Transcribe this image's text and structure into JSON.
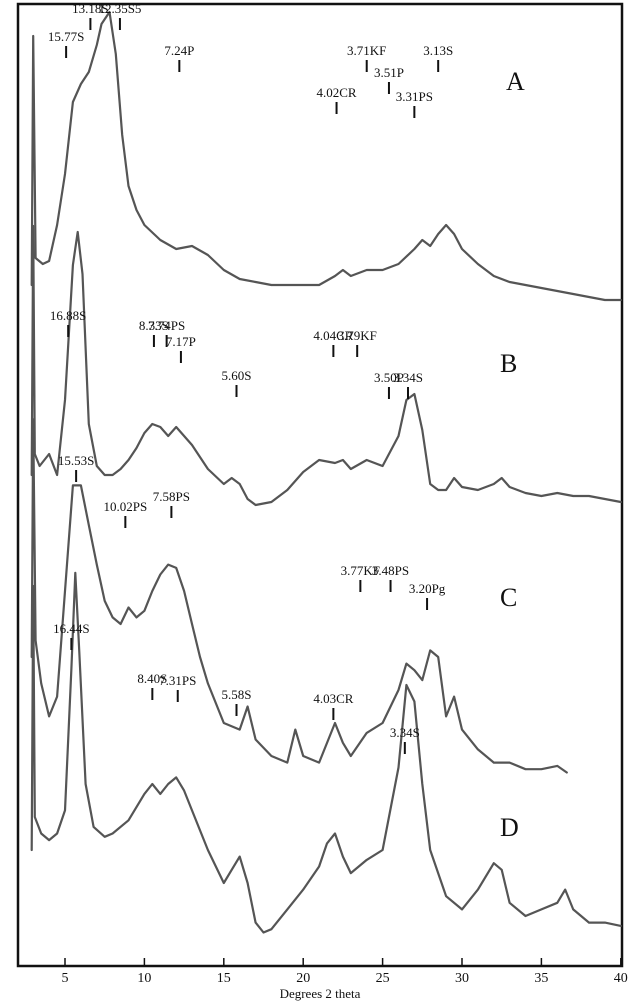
{
  "chart_data": {
    "type": "line",
    "xlabel": "Degrees 2 theta",
    "ylabel": "",
    "xlim": [
      2.5,
      40
    ],
    "xticks": [
      5,
      10,
      15,
      20,
      25,
      30,
      35,
      40
    ],
    "grid": false,
    "series": [
      {
        "name": "A",
        "x": [
          2.9,
          3.0,
          3.15,
          3.6,
          4.0,
          4.5,
          5.0,
          5.5,
          6.0,
          6.5,
          7.0,
          7.3,
          7.8,
          8.2,
          8.6,
          9.0,
          9.5,
          10.0,
          11.0,
          12.0,
          13.0,
          14.0,
          15.0,
          16.0,
          17.0,
          18.0,
          19.0,
          20.0,
          21.0,
          22.0,
          22.5,
          23.0,
          24.0,
          25.0,
          26.0,
          27.0,
          27.5,
          28.0,
          28.5,
          29.0,
          29.5,
          30.0,
          31.0,
          32.0,
          33.0,
          34.0,
          35.0,
          36.0,
          37.0,
          38.0,
          39.0,
          40.0
        ],
        "y": [
          0.05,
          0.88,
          0.14,
          0.12,
          0.13,
          0.25,
          0.42,
          0.66,
          0.72,
          0.76,
          0.85,
          0.92,
          0.96,
          0.82,
          0.55,
          0.38,
          0.3,
          0.25,
          0.2,
          0.17,
          0.18,
          0.15,
          0.1,
          0.07,
          0.06,
          0.05,
          0.05,
          0.05,
          0.05,
          0.08,
          0.1,
          0.08,
          0.1,
          0.1,
          0.12,
          0.17,
          0.2,
          0.18,
          0.22,
          0.25,
          0.22,
          0.17,
          0.12,
          0.08,
          0.06,
          0.05,
          0.04,
          0.03,
          0.02,
          0.01,
          0.0,
          0.0
        ]
      },
      {
        "name": "B",
        "x": [
          2.9,
          3.0,
          3.1,
          3.4,
          4.0,
          4.5,
          5.0,
          5.5,
          5.8,
          6.1,
          6.5,
          7.0,
          7.5,
          8.0,
          8.5,
          9.0,
          9.5,
          10.0,
          10.5,
          11.0,
          11.5,
          12.0,
          12.5,
          13.0,
          14.0,
          15.0,
          15.5,
          16.0,
          16.5,
          17.0,
          18.0,
          19.0,
          20.0,
          21.0,
          22.0,
          22.5,
          23.0,
          24.0,
          25.0,
          26.0,
          26.5,
          27.0,
          27.5,
          28.0,
          28.5,
          29.0,
          29.5,
          30.0,
          31.0,
          32.0,
          32.5,
          33.0,
          34.0,
          35.0,
          36.0,
          37.0,
          38.0,
          39.0,
          40.0
        ],
        "y": [
          0.05,
          0.88,
          0.12,
          0.08,
          0.12,
          0.05,
          0.3,
          0.75,
          0.86,
          0.72,
          0.22,
          0.08,
          0.05,
          0.05,
          0.07,
          0.1,
          0.14,
          0.19,
          0.22,
          0.21,
          0.18,
          0.21,
          0.18,
          0.15,
          0.07,
          0.02,
          0.04,
          0.02,
          -0.03,
          -0.05,
          -0.04,
          0.0,
          0.06,
          0.1,
          0.09,
          0.1,
          0.07,
          0.1,
          0.08,
          0.18,
          0.3,
          0.32,
          0.2,
          0.02,
          0.0,
          0.0,
          0.04,
          0.01,
          0.0,
          0.02,
          0.04,
          0.01,
          -0.01,
          -0.02,
          -0.01,
          -0.02,
          -0.02,
          -0.03,
          -0.04
        ]
      },
      {
        "name": "C",
        "x": [
          2.9,
          3.0,
          3.15,
          3.5,
          4.0,
          4.5,
          5.0,
          5.5,
          6.0,
          6.5,
          7.0,
          7.5,
          8.0,
          8.5,
          9.0,
          9.5,
          10.0,
          10.5,
          11.0,
          11.5,
          12.0,
          12.5,
          13.0,
          13.5,
          14.0,
          15.0,
          16.0,
          16.5,
          17.0,
          18.0,
          19.0,
          19.5,
          20.0,
          21.0,
          22.0,
          22.5,
          23.0,
          24.0,
          25.0,
          26.0,
          26.5,
          27.0,
          27.5,
          28.0,
          28.5,
          29.0,
          29.5,
          30.0,
          31.0,
          32.0,
          33.0,
          34.0,
          35.0,
          36.0,
          36.6
        ],
        "y": [
          0.1,
          0.82,
          0.15,
          0.02,
          -0.08,
          -0.02,
          0.3,
          0.62,
          0.62,
          0.5,
          0.38,
          0.27,
          0.22,
          0.2,
          0.25,
          0.22,
          0.24,
          0.3,
          0.35,
          0.38,
          0.37,
          0.3,
          0.2,
          0.1,
          0.02,
          -0.1,
          -0.12,
          -0.05,
          -0.15,
          -0.2,
          -0.22,
          -0.12,
          -0.2,
          -0.22,
          -0.1,
          -0.16,
          -0.2,
          -0.13,
          -0.1,
          0.0,
          0.08,
          0.06,
          0.03,
          0.12,
          0.1,
          -0.08,
          -0.02,
          -0.12,
          -0.18,
          -0.22,
          -0.22,
          -0.24,
          -0.24,
          -0.23,
          -0.25
        ]
      },
      {
        "name": "D",
        "x": [
          2.9,
          3.0,
          3.1,
          3.5,
          4.0,
          4.5,
          5.0,
          5.4,
          5.65,
          5.9,
          6.3,
          6.8,
          7.5,
          8.0,
          9.0,
          10.0,
          10.5,
          11.0,
          11.5,
          12.0,
          12.5,
          13.0,
          14.0,
          15.0,
          15.5,
          16.0,
          16.5,
          17.0,
          17.5,
          18.0,
          19.0,
          20.0,
          21.0,
          21.5,
          22.0,
          22.5,
          23.0,
          24.0,
          25.0,
          26.0,
          26.5,
          27.0,
          27.5,
          28.0,
          29.0,
          30.0,
          31.0,
          32.0,
          32.5,
          33.0,
          34.0,
          35.0,
          36.0,
          36.5,
          37.0,
          38.0,
          39.0,
          40.0
        ],
        "y": [
          0.0,
          0.8,
          0.1,
          0.05,
          0.03,
          0.05,
          0.12,
          0.55,
          0.84,
          0.6,
          0.2,
          0.07,
          0.04,
          0.05,
          0.09,
          0.17,
          0.2,
          0.17,
          0.2,
          0.22,
          0.18,
          0.12,
          0.0,
          -0.1,
          -0.06,
          -0.02,
          -0.1,
          -0.22,
          -0.25,
          -0.24,
          -0.18,
          -0.12,
          -0.05,
          0.02,
          0.05,
          -0.02,
          -0.07,
          -0.03,
          0.0,
          0.25,
          0.5,
          0.45,
          0.2,
          0.0,
          -0.14,
          -0.18,
          -0.12,
          -0.04,
          -0.06,
          -0.16,
          -0.2,
          -0.18,
          -0.16,
          -0.12,
          -0.18,
          -0.22,
          -0.22,
          -0.23
        ]
      }
    ],
    "panels": [
      "A",
      "B",
      "C",
      "D"
    ],
    "annotations": [
      {
        "panel": "A",
        "label": "13.18S",
        "x": 6.6
      },
      {
        "panel": "A",
        "label": "12.35S5",
        "x": 7.2
      },
      {
        "panel": "A",
        "label": "15.77S",
        "x": 5.7
      },
      {
        "panel": "A",
        "label": "7.24P",
        "x": 12.2
      },
      {
        "panel": "A",
        "label": "3.71KF",
        "x": 24.0
      },
      {
        "panel": "A",
        "label": "3.13S",
        "x": 28.5
      },
      {
        "panel": "A",
        "label": "3.51P",
        "x": 25.4
      },
      {
        "panel": "A",
        "label": "4.02CR",
        "x": 22.1
      },
      {
        "panel": "A",
        "label": "3.31PS",
        "x": 27.0
      },
      {
        "panel": "B",
        "label": "16.88S",
        "x": 5.2
      },
      {
        "panel": "B",
        "label": "8.33S",
        "x": 10.6
      },
      {
        "panel": "B",
        "label": "7.74PS",
        "x": 11.4
      },
      {
        "panel": "B",
        "label": "7.17P",
        "x": 12.3
      },
      {
        "panel": "B",
        "label": "4.04CR",
        "x": 21.9
      },
      {
        "panel": "B",
        "label": "3.79KF",
        "x": 23.4
      },
      {
        "panel": "B",
        "label": "5.60S",
        "x": 15.8
      },
      {
        "panel": "B",
        "label": "3.50P",
        "x": 25.4
      },
      {
        "panel": "B",
        "label": "3.34S",
        "x": 26.6
      },
      {
        "panel": "C",
        "label": "15.53S",
        "x": 5.7
      },
      {
        "panel": "C",
        "label": "10.02PS",
        "x": 8.8
      },
      {
        "panel": "C",
        "label": "7.58PS",
        "x": 11.7
      },
      {
        "panel": "C",
        "label": "3.77KF",
        "x": 23.6
      },
      {
        "panel": "C",
        "label": "3.48PS",
        "x": 25.5
      },
      {
        "panel": "C",
        "label": "3.20Pg",
        "x": 27.8
      },
      {
        "panel": "D",
        "label": "16.44S",
        "x": 5.4
      },
      {
        "panel": "D",
        "label": "8.40S",
        "x": 10.5
      },
      {
        "panel": "D",
        "label": "7.31PS",
        "x": 12.1
      },
      {
        "panel": "D",
        "label": "5.58S",
        "x": 15.8
      },
      {
        "panel": "D",
        "label": "4.03CR",
        "x": 21.9
      },
      {
        "panel": "D",
        "label": "3.34S",
        "x": 26.4
      }
    ]
  }
}
